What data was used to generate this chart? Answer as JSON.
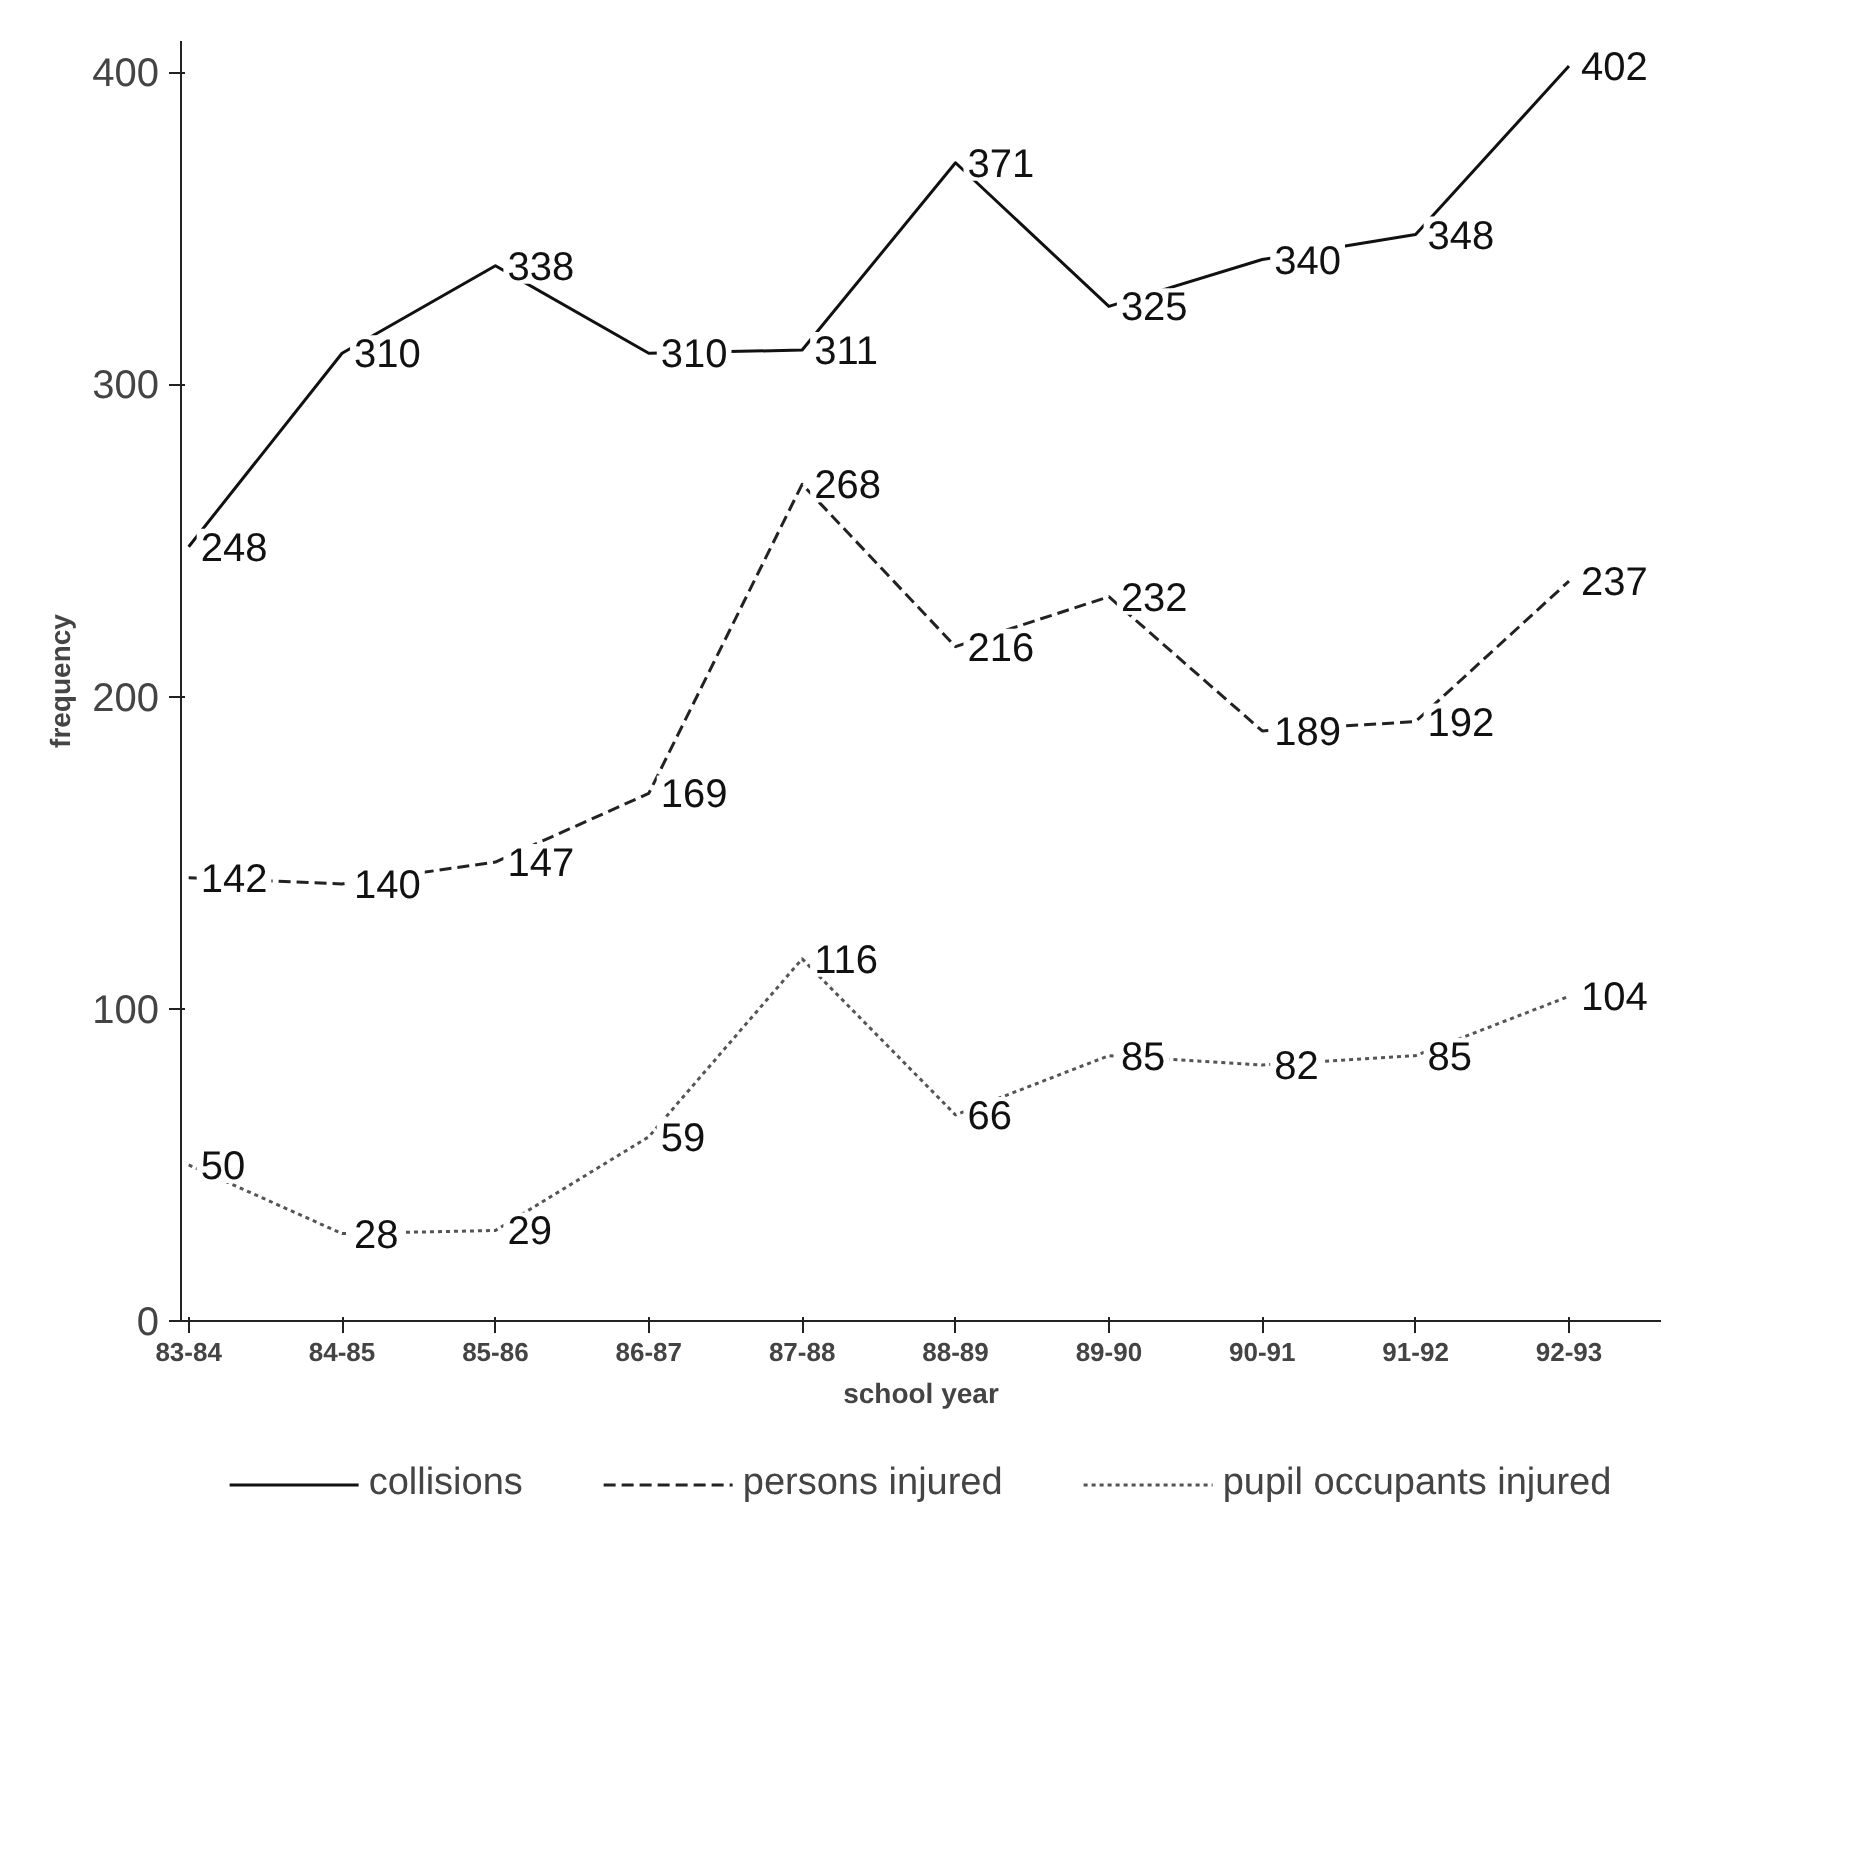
{
  "chart_data": {
    "type": "line",
    "xlabel": "school year",
    "ylabel": "frequency",
    "categories": [
      "83-84",
      "84-85",
      "85-86",
      "86-87",
      "87-88",
      "88-89",
      "89-90",
      "90-91",
      "91-92",
      "92-93"
    ],
    "series": [
      {
        "name": "collisions",
        "color": "#111111",
        "line_style": "solid",
        "values": [
          248,
          310,
          338,
          310,
          311,
          371,
          325,
          340,
          348,
          402
        ]
      },
      {
        "name": "persons injured",
        "color": "#222222",
        "line_style": "dashed",
        "values": [
          142,
          140,
          147,
          169,
          268,
          216,
          232,
          189,
          192,
          237
        ]
      },
      {
        "name": "pupil occupants injured",
        "color": "#555555",
        "line_style": "dotted",
        "values": [
          50,
          28,
          29,
          59,
          116,
          66,
          85,
          82,
          85,
          104
        ]
      }
    ],
    "ylim": [
      0,
      410
    ],
    "yticks": [
      0,
      100,
      200,
      300,
      400
    ],
    "data_labels": true,
    "grid": false,
    "legend": "bottom",
    "marker": "none"
  }
}
